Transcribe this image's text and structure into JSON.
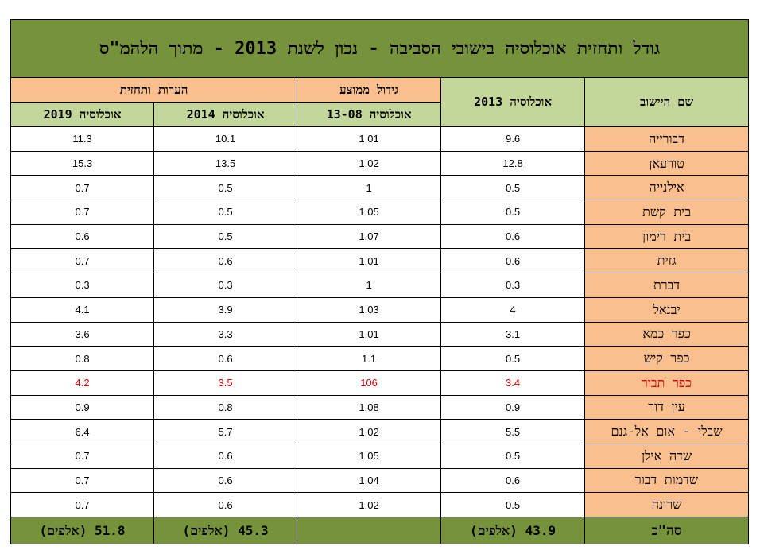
{
  "title": "גודל ותחזית אוכלוסיה בישובי הסביבה - נכון לשנת 2013 - מתוך הלהמ\"ס",
  "headers": {
    "settlement": "שם היישוב",
    "pop2013": "אוכלוסיה 2013",
    "avg_growth": "גידול ממוצע",
    "growth_sub": "אוכלוסיה 13-08",
    "forecast": "הערות ותחזית",
    "pop2014": "אוכלוסיה 2014",
    "pop2019": "אוכלוסיה 2019"
  },
  "rows": [
    {
      "name": "דבורייה",
      "pop2013": "9.6",
      "growth": "1.01",
      "pop2014": "10.1",
      "pop2019": "11.3",
      "highlight": false
    },
    {
      "name": "טורעאן",
      "pop2013": "12.8",
      "growth": "1.02",
      "pop2014": "13.5",
      "pop2019": "15.3",
      "highlight": false
    },
    {
      "name": "אילנייה",
      "pop2013": "0.5",
      "growth": "1",
      "pop2014": "0.5",
      "pop2019": "0.7",
      "highlight": false
    },
    {
      "name": "בית קשת",
      "pop2013": "0.5",
      "growth": "1.05",
      "pop2014": "0.5",
      "pop2019": "0.7",
      "highlight": false
    },
    {
      "name": "בית רימון",
      "pop2013": "0.6",
      "growth": "1.07",
      "pop2014": "0.5",
      "pop2019": "0.6",
      "highlight": false
    },
    {
      "name": "גזית",
      "pop2013": "0.6",
      "growth": "1.01",
      "pop2014": "0.6",
      "pop2019": "0.7",
      "highlight": false
    },
    {
      "name": "דברת",
      "pop2013": "0.3",
      "growth": "1",
      "pop2014": "0.3",
      "pop2019": "0.3",
      "highlight": false
    },
    {
      "name": "יבנאל",
      "pop2013": "4",
      "growth": "1.03",
      "pop2014": "3.9",
      "pop2019": "4.1",
      "highlight": false
    },
    {
      "name": "כפר כמא",
      "pop2013": "3.1",
      "growth": "1.01",
      "pop2014": "3.3",
      "pop2019": "3.6",
      "highlight": false
    },
    {
      "name": "כפר קיש",
      "pop2013": "0.5",
      "growth": "1.1",
      "pop2014": "0.6",
      "pop2019": "0.8",
      "highlight": false
    },
    {
      "name": "כפר תבור",
      "pop2013": "3.4",
      "growth": "106",
      "pop2014": "3.5",
      "pop2019": "4.2",
      "highlight": true
    },
    {
      "name": "עין דור",
      "pop2013": "0.9",
      "growth": "1.08",
      "pop2014": "0.8",
      "pop2019": "0.9",
      "highlight": false
    },
    {
      "name": "שבלי - אום אל-גנם",
      "pop2013": "5.5",
      "growth": "1.02",
      "pop2014": "5.7",
      "pop2019": "6.4",
      "highlight": false
    },
    {
      "name": "שדה אילן",
      "pop2013": "0.5",
      "growth": "1.05",
      "pop2014": "0.6",
      "pop2019": "0.7",
      "highlight": false
    },
    {
      "name": "שדמות דבור",
      "pop2013": "0.6",
      "growth": "1.04",
      "pop2014": "0.6",
      "pop2019": "0.7",
      "highlight": false
    },
    {
      "name": "שרונה",
      "pop2013": "0.5",
      "growth": "1.02",
      "pop2014": "0.6",
      "pop2019": "0.7",
      "highlight": false
    }
  ],
  "totals": {
    "label": "סה\"כ",
    "pop2013": "43.9 (אלפים)",
    "growth": "",
    "pop2014": "45.3 (אלפים)",
    "pop2019": "51.8 (אלפים)"
  },
  "colors": {
    "title_bg": "#76933c",
    "header_orange": "#fabf8f",
    "header_green": "#c4d79b",
    "highlight_text": "#e00000"
  }
}
